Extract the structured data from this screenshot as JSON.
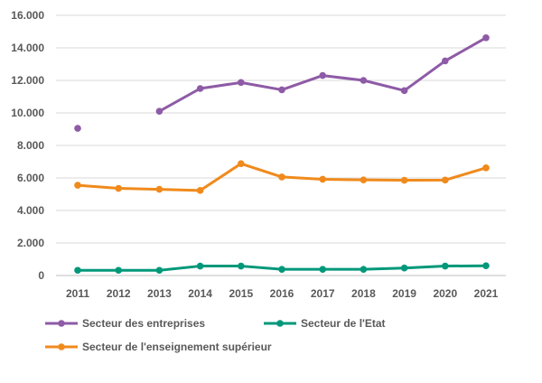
{
  "chart_data": {
    "type": "line",
    "title": "",
    "xlabel": "",
    "ylabel": "",
    "categories": [
      "2011",
      "2012",
      "2013",
      "2014",
      "2015",
      "2016",
      "2017",
      "2018",
      "2019",
      "2020",
      "2021"
    ],
    "y_ticks": [
      "0",
      "2.000",
      "4.000",
      "6.000",
      "8.000",
      "10.000",
      "12.000",
      "14.000",
      "16.000"
    ],
    "ylim": [
      0,
      16000
    ],
    "grid": "horizontal",
    "legend_position": "bottom-left",
    "series": [
      {
        "name": "Secteur des entreprises",
        "color": "#8E5BA6",
        "values": [
          9050,
          null,
          10100,
          11500,
          11870,
          11420,
          12300,
          12000,
          11370,
          13200,
          14620
        ]
      },
      {
        "name": "Secteur de l'Etat",
        "color": "#00987A",
        "values": [
          320,
          320,
          320,
          580,
          580,
          380,
          380,
          380,
          460,
          580,
          600
        ]
      },
      {
        "name": "Secteur de l'enseignement supérieur",
        "color": "#F08A1C",
        "values": [
          5550,
          5360,
          5300,
          5230,
          6880,
          6060,
          5920,
          5880,
          5860,
          5870,
          6620
        ]
      }
    ]
  }
}
